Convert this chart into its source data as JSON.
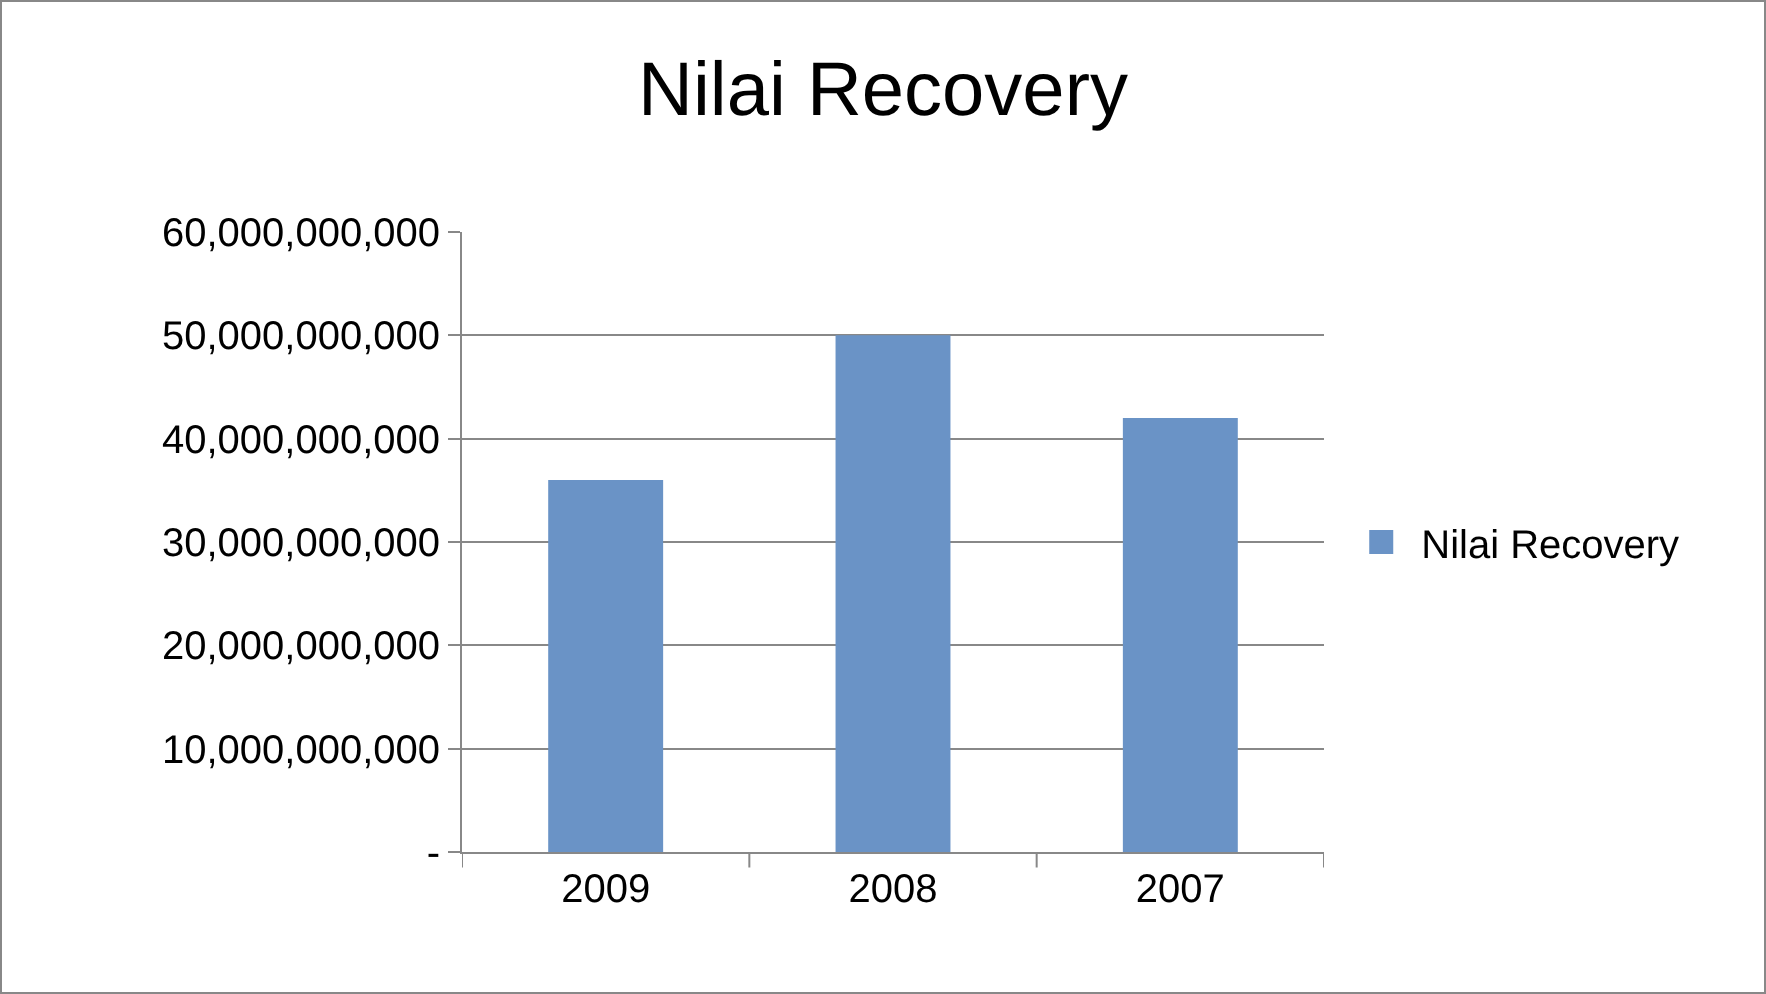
{
  "chart_data": {
    "type": "bar",
    "title": "Nilai Recovery",
    "categories": [
      "2009",
      "2008",
      "2007"
    ],
    "series": [
      {
        "name": "Nilai Recovery",
        "color": "#6a93c6",
        "values": [
          36000000000,
          50000000000,
          42000000000
        ]
      }
    ],
    "ylim": [
      0,
      60000000000
    ],
    "yticks": [
      {
        "value": 0,
        "label": "-"
      },
      {
        "value": 10000000000,
        "label": "10,000,000,000"
      },
      {
        "value": 20000000000,
        "label": "20,000,000,000"
      },
      {
        "value": 30000000000,
        "label": "30,000,000,000"
      },
      {
        "value": 40000000000,
        "label": "40,000,000,000"
      },
      {
        "value": 50000000000,
        "label": "50,000,000,000"
      },
      {
        "value": 60000000000,
        "label": "60,000,000,000"
      }
    ],
    "grid": "y",
    "legend": "right"
  }
}
